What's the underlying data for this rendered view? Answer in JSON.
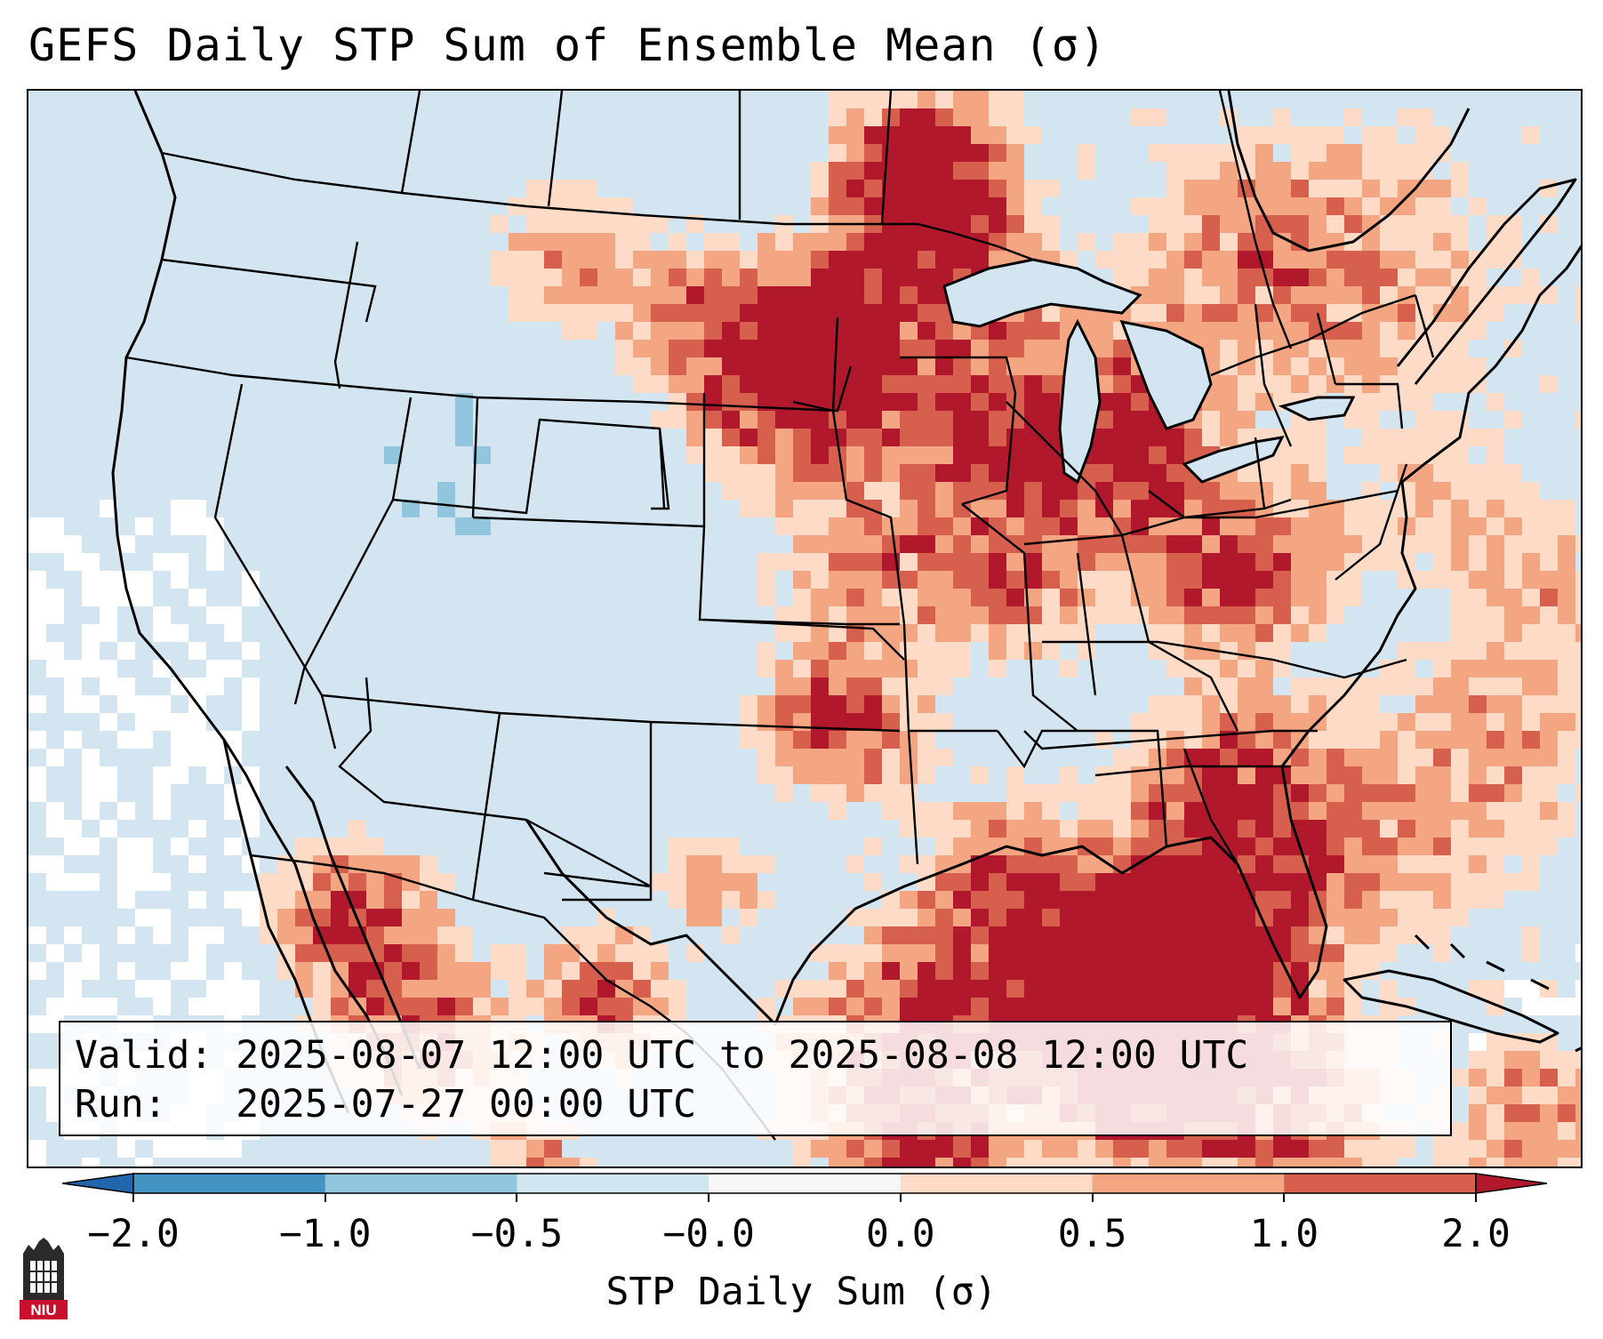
{
  "title": "GEFS Daily STP Sum of Ensemble Mean (σ)",
  "valid_label": "Valid:",
  "valid_value": "2025-08-07 12:00 UTC to 2025-08-08 12:00 UTC",
  "run_label": "Run:",
  "run_value": "2025-07-27 00:00 UTC",
  "colorbar": {
    "label": "STP Daily Sum (σ)",
    "ticks": [
      "−2.0",
      "−1.0",
      "−0.5",
      "−0.0",
      "0.0",
      "0.5",
      "1.0",
      "2.0"
    ],
    "bin_colors": [
      "#4393c3",
      "#92c5de",
      "#d1e5f0",
      "#f7f7f7",
      "#fddbc7",
      "#f4a582",
      "#d6604d"
    ],
    "under_color": "#2166ac",
    "over_color": "#b2182b"
  },
  "map": {
    "background_color": "#d2e5f0",
    "anomaly_colors": {
      "weak_positive": "#fddbc7",
      "moderate_positive": "#f4a582",
      "strong_positive": "#d6604d",
      "extreme_positive": "#b2182b",
      "weak_negative": "#92c5de",
      "near_zero": "#ffffff"
    }
  },
  "logo": {
    "text": "NIU",
    "icon": "university-tower-icon"
  }
}
